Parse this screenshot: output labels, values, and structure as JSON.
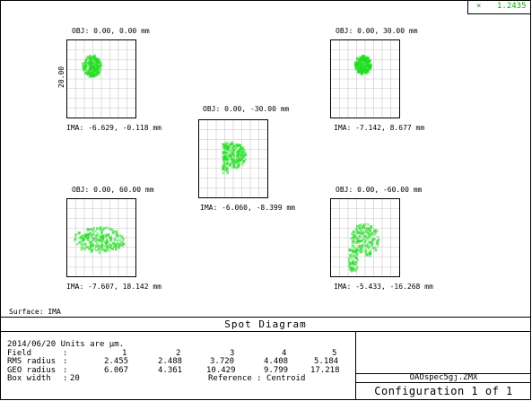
{
  "legend": {
    "marker": "×",
    "value": "1.2435",
    "color": "#00b000"
  },
  "chart_data": {
    "type": "scatter",
    "title": "Spot Diagram",
    "surface": "Surface: IMA",
    "scale_label": "20.00",
    "series_color": "#22dd22",
    "spots": [
      {
        "name": "spot-1",
        "obj": "OBJ: 0.00, 0.00 mm",
        "ima": "IMA: -6.629, -0.118 mm",
        "center": [
          -10,
          -12
        ],
        "spread": 12,
        "shape": "blob"
      },
      {
        "name": "spot-2",
        "obj": "OBJ: 0.00, 30.00 mm",
        "ima": "IMA: -7.142, 8.677 mm",
        "center": [
          -2,
          -14
        ],
        "spread": 10,
        "shape": "dense"
      },
      {
        "name": "spot-3",
        "obj": "OBJ: 0.00, -30.00 mm",
        "ima": "IMA: -6.060, -8.399 mm",
        "center": [
          2,
          -2
        ],
        "spread": 14,
        "shape": "tail"
      },
      {
        "name": "spot-4",
        "obj": "OBJ: 0.00, 60.00 mm",
        "ima": "IMA: -7.607, 18.142 mm",
        "center": [
          -2,
          4
        ],
        "spread": 22,
        "shape": "wide"
      },
      {
        "name": "spot-5",
        "obj": "OBJ: 0.00, -60.00 mm",
        "ima": "IMA: -5.433, -16.268 mm",
        "center": [
          0,
          4
        ],
        "spread": 18,
        "shape": "scatter"
      }
    ]
  },
  "info": {
    "date_units": "2014/06/20  Units are µm.",
    "field_label": "Field",
    "field_values": [
      "1",
      "2",
      "3",
      "4",
      "5"
    ],
    "rms_label": "RMS radius",
    "rms_values": [
      "2.455",
      "2.488",
      "3.720",
      "4.408",
      "5.184"
    ],
    "geo_label": "GEO radius",
    "geo_values": [
      "6.067",
      "4.361",
      "10.429",
      "9.799",
      "17.218"
    ],
    "box_label": "Box width",
    "box_value": "20",
    "reference": "Reference   : Centroid"
  },
  "file_name": "OAOspec5gj.ZMX",
  "configuration": "Configuration 1 of 1"
}
